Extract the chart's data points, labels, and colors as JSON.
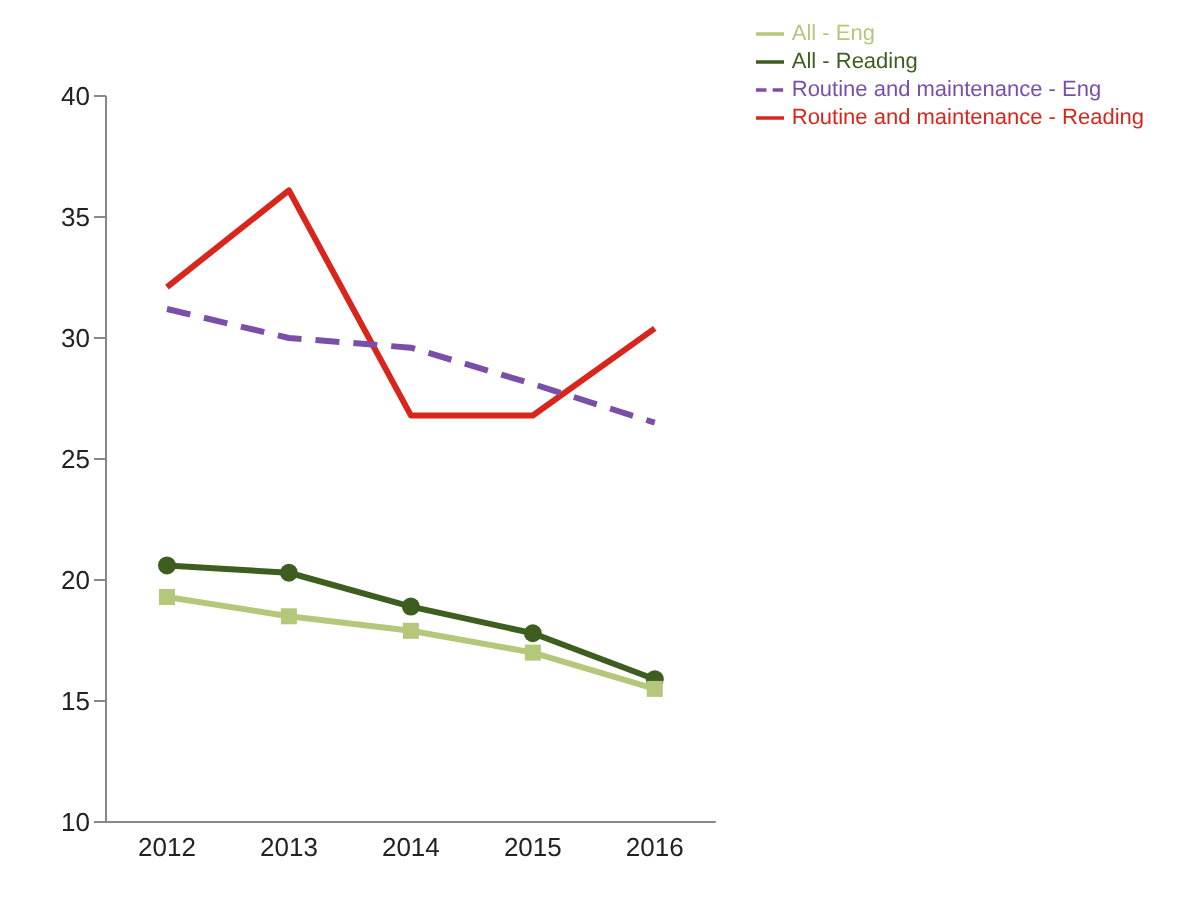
{
  "chart_data": {
    "type": "line",
    "categories": [
      "2012",
      "2013",
      "2014",
      "2015",
      "2016"
    ],
    "series": [
      {
        "name": "All - Reading",
        "color": "#3d5e1e",
        "marker": "circle",
        "line_style": "solid",
        "values": [
          20.6,
          20.3,
          18.9,
          17.8,
          15.9
        ]
      },
      {
        "name": "Routine and maintenance - Reading",
        "color": "#d9261c",
        "marker": "none",
        "line_style": "solid",
        "values": [
          32.1,
          36.1,
          26.8,
          26.8,
          30.4
        ]
      },
      {
        "name": "All - Eng",
        "color": "#b5c77a",
        "marker": "square",
        "line_style": "solid",
        "values": [
          19.3,
          18.5,
          17.9,
          17.0,
          15.5
        ]
      },
      {
        "name": "Routine and maintenance - Eng",
        "color": "#7a4fa8",
        "marker": "none",
        "line_style": "dashed",
        "values": [
          31.2,
          30.0,
          29.6,
          28.1,
          26.5
        ]
      }
    ],
    "ylim": [
      10,
      40
    ],
    "yticks": [
      10,
      15,
      20,
      25,
      30,
      35,
      40
    ],
    "grid": false,
    "legend": "top right"
  }
}
